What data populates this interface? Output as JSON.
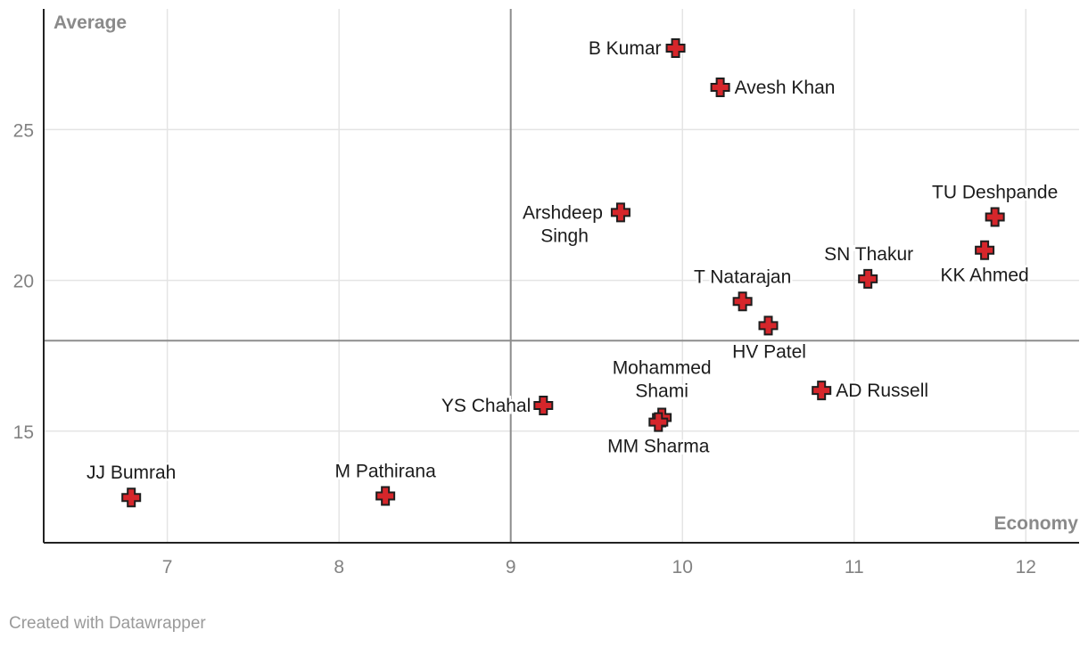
{
  "chart_data": {
    "type": "scatter",
    "title": "",
    "xlabel": "Economy",
    "ylabel": "Average",
    "xlim": [
      6.28,
      12.31
    ],
    "ylim": [
      11.3,
      29.0
    ],
    "x_ticks": [
      "7",
      "8",
      "9",
      "10",
      "11",
      "12"
    ],
    "y_ticks": [
      "15",
      "20",
      "25"
    ],
    "grid": true,
    "reference_lines": {
      "x": 9,
      "y": 18
    },
    "marker_color": "#d6262b",
    "points": [
      {
        "name": "B Kumar",
        "x": 9.96,
        "y": 27.7
      },
      {
        "name": "Avesh Khan",
        "x": 10.22,
        "y": 26.4
      },
      {
        "name": "TU Deshpande",
        "x": 11.82,
        "y": 22.1
      },
      {
        "name": "Arshdeep Singh",
        "x": 9.64,
        "y": 22.25
      },
      {
        "name": "KK Ahmed",
        "x": 11.76,
        "y": 21.0
      },
      {
        "name": "SN Thakur",
        "x": 11.08,
        "y": 20.05
      },
      {
        "name": "T Natarajan",
        "x": 10.35,
        "y": 19.3
      },
      {
        "name": "HV Patel",
        "x": 10.5,
        "y": 18.5
      },
      {
        "name": "AD Russell",
        "x": 10.81,
        "y": 16.35
      },
      {
        "name": "Mohammed Shami",
        "x": 9.88,
        "y": 15.45
      },
      {
        "name": "MM Sharma",
        "x": 9.86,
        "y": 15.3
      },
      {
        "name": "YS Chahal",
        "x": 9.19,
        "y": 15.85
      },
      {
        "name": "JJ Bumrah",
        "x": 6.79,
        "y": 12.8
      },
      {
        "name": "M Pathirana",
        "x": 8.27,
        "y": 12.85
      }
    ]
  },
  "footer": {
    "credit": "Created with Datawrapper"
  }
}
